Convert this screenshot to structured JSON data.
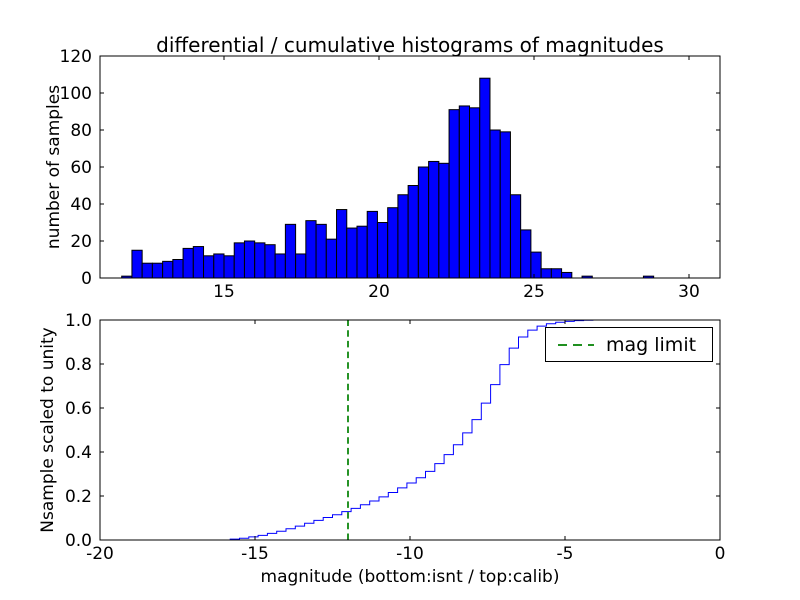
{
  "figure": {
    "background": "#ffffff",
    "frame_color": "#000000"
  },
  "chart_data": [
    {
      "type": "bar",
      "title": "differential / cumulative histograms of magnitudes",
      "xlabel": "",
      "ylabel": "number of samples",
      "xlim": [
        11,
        31
      ],
      "ylim": [
        0,
        120
      ],
      "xticks": [
        15,
        20,
        25,
        30
      ],
      "xtick_labels": [
        "15",
        "20",
        "25",
        "30"
      ],
      "yticks": [
        0,
        20,
        40,
        60,
        80,
        100,
        120
      ],
      "ytick_labels": [
        "0",
        "20",
        "40",
        "60",
        "80",
        "100",
        "120"
      ],
      "grid": false,
      "bar_color": "#0000ff",
      "bar_edge_color": "#000000",
      "bin_start": 11.7,
      "bin_width": 0.33,
      "counts": [
        1,
        15,
        8,
        8,
        9,
        10,
        16,
        17,
        12,
        13,
        12,
        19,
        20,
        19,
        18,
        13,
        29,
        13,
        31,
        29,
        21,
        37,
        27,
        28,
        36,
        30,
        38,
        45,
        50,
        60,
        63,
        62,
        91,
        93,
        92,
        108,
        80,
        79,
        45,
        26,
        14,
        5,
        5,
        3,
        0,
        1,
        0,
        0,
        0,
        0,
        0,
        1
      ]
    },
    {
      "type": "line",
      "style": "step",
      "title": "",
      "xlabel": "magnitude (bottom:isnt / top:calib)",
      "ylabel": "Nsample scaled to unity",
      "xlim": [
        -20,
        0
      ],
      "ylim": [
        0,
        1.0
      ],
      "xticks": [
        -20,
        -15,
        -10,
        -5,
        0
      ],
      "xtick_labels": [
        "-20",
        "-15",
        "-10",
        "-5",
        "0"
      ],
      "yticks": [
        0,
        0.2,
        0.4,
        0.6,
        0.8,
        1.0
      ],
      "ytick_labels": [
        "0.0",
        "0.2",
        "0.4",
        "0.6",
        "0.8",
        "1.0"
      ],
      "grid": false,
      "line_color": "#0000ff",
      "steps": [
        [
          -15.8,
          0.004
        ],
        [
          -15.5,
          0.008
        ],
        [
          -15.2,
          0.014
        ],
        [
          -14.9,
          0.021
        ],
        [
          -14.6,
          0.03
        ],
        [
          -14.3,
          0.04
        ],
        [
          -14.0,
          0.051
        ],
        [
          -13.7,
          0.063
        ],
        [
          -13.4,
          0.076
        ],
        [
          -13.1,
          0.089
        ],
        [
          -12.8,
          0.102
        ],
        [
          -12.5,
          0.115
        ],
        [
          -12.2,
          0.129
        ],
        [
          -11.9,
          0.144
        ],
        [
          -11.6,
          0.16
        ],
        [
          -11.3,
          0.177
        ],
        [
          -11.0,
          0.196
        ],
        [
          -10.7,
          0.216
        ],
        [
          -10.4,
          0.237
        ],
        [
          -10.1,
          0.259
        ],
        [
          -9.8,
          0.283
        ],
        [
          -9.5,
          0.312
        ],
        [
          -9.2,
          0.347
        ],
        [
          -8.9,
          0.388
        ],
        [
          -8.6,
          0.433
        ],
        [
          -8.3,
          0.487
        ],
        [
          -8.0,
          0.547
        ],
        [
          -7.7,
          0.622
        ],
        [
          -7.4,
          0.706
        ],
        [
          -7.1,
          0.797
        ],
        [
          -6.8,
          0.872
        ],
        [
          -6.5,
          0.923
        ],
        [
          -6.2,
          0.954
        ],
        [
          -5.9,
          0.972
        ],
        [
          -5.6,
          0.983
        ],
        [
          -5.3,
          0.99
        ],
        [
          -5.0,
          0.994
        ],
        [
          -4.7,
          0.997
        ],
        [
          -4.4,
          0.999
        ],
        [
          -4.1,
          1.0
        ]
      ],
      "vline": {
        "x": -12,
        "color": "#008000",
        "style": "dashed",
        "label": "mag limit"
      },
      "legend": {
        "position": "upper right",
        "entries": [
          {
            "label": "mag limit",
            "color": "#008000",
            "style": "dashed"
          }
        ]
      }
    }
  ]
}
